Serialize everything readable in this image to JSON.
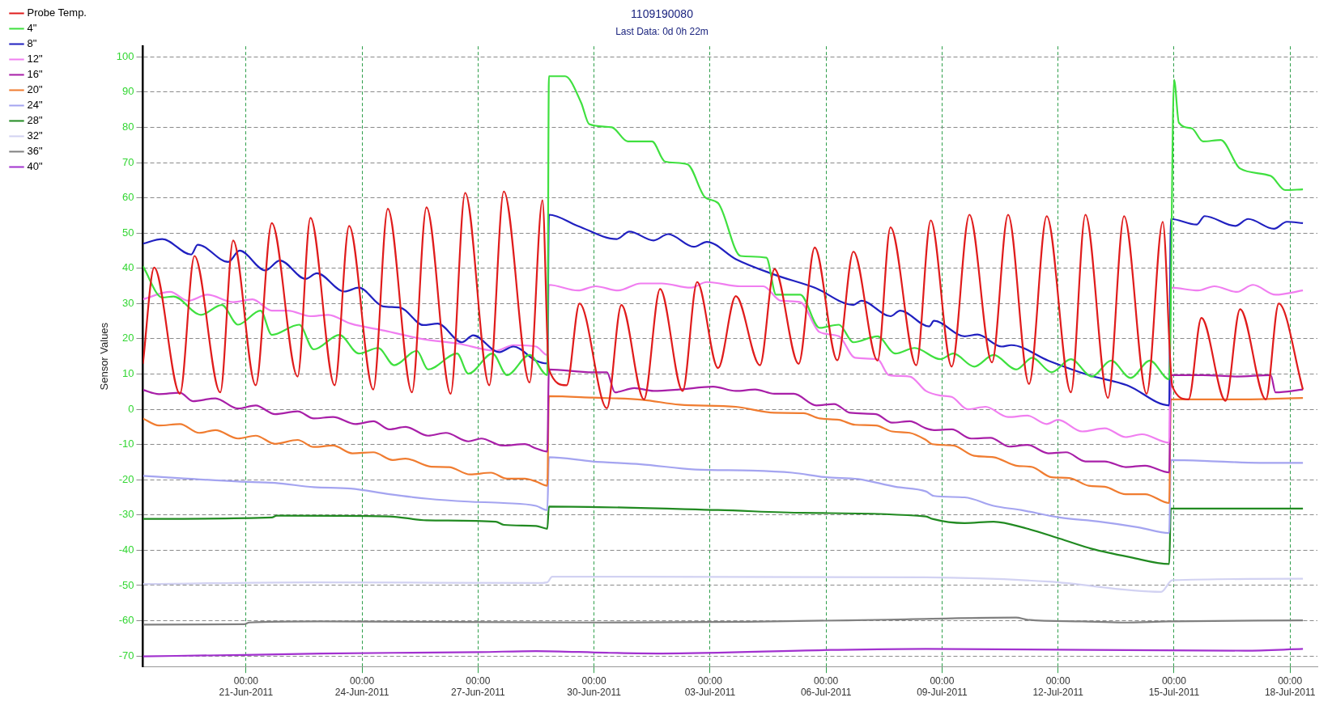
{
  "chart_data": {
    "type": "line",
    "title": "1109190080",
    "subtitle": "Last Data: 0d 0h 22m",
    "ylabel": "Sensor Values",
    "xlim": [
      "2011-06-18T08:00",
      "2011-07-18T17:00"
    ],
    "xticks": [
      {
        "value": "2011-06-21T00:00",
        "label": "00:00\n21-Jun-2011"
      },
      {
        "value": "2011-06-24T00:00",
        "label": "00:00\n24-Jun-2011"
      },
      {
        "value": "2011-06-27T00:00",
        "label": "00:00\n27-Jun-2011"
      },
      {
        "value": "2011-06-30T00:00",
        "label": "00:00\n30-Jun-2011"
      },
      {
        "value": "2011-07-03T00:00",
        "label": "00:00\n03-Jul-2011"
      },
      {
        "value": "2011-07-06T00:00",
        "label": "00:00\n06-Jul-2011"
      },
      {
        "value": "2011-07-09T00:00",
        "label": "00:00\n09-Jul-2011"
      },
      {
        "value": "2011-07-12T00:00",
        "label": "00:00\n12-Jul-2011"
      },
      {
        "value": "2011-07-15T00:00",
        "label": "00:00\n15-Jul-2011"
      },
      {
        "value": "2011-07-18T00:00",
        "label": "00:00\n18-Jul-2011"
      }
    ],
    "ylim": [
      -73,
      103
    ],
    "yticks": [
      -70,
      -60,
      -50,
      -40,
      -30,
      -20,
      -10,
      0,
      10,
      20,
      30,
      40,
      50,
      60,
      70,
      80,
      90,
      100
    ],
    "grid": true,
    "legend": "left",
    "series": [
      {
        "name": "Probe Temp.",
        "color": "#e01c1c",
        "x": [
          "2011-06-18T08:00",
          "2011-06-18T15:00",
          "2011-06-19T07:00",
          "2011-06-19T16:00",
          "2011-06-20T08:00",
          "2011-06-20T16:00",
          "2011-06-21T06:00",
          "2011-06-21T16:00",
          "2011-06-22T08:00",
          "2011-06-22T16:00",
          "2011-06-23T07:00",
          "2011-06-23T16:00",
          "2011-06-24T07:00",
          "2011-06-24T16:00",
          "2011-06-25T07:00",
          "2011-06-25T16:00",
          "2011-06-26T07:00",
          "2011-06-26T16:00",
          "2011-06-27T07:00",
          "2011-06-27T16:00",
          "2011-06-28T08:00",
          "2011-06-28T16:00",
          "2011-06-28T20:00",
          "2011-06-29T07:00",
          "2011-06-29T15:00",
          "2011-06-30T08:00",
          "2011-06-30T17:00",
          "2011-07-01T07:00",
          "2011-07-01T17:00",
          "2011-07-02T07:00",
          "2011-07-02T16:00",
          "2011-07-03T05:00",
          "2011-07-03T16:00",
          "2011-07-04T07:00",
          "2011-07-04T16:00",
          "2011-07-05T07:00",
          "2011-07-05T17:00",
          "2011-07-06T07:00",
          "2011-07-06T17:00",
          "2011-07-07T08:00",
          "2011-07-07T16:00",
          "2011-07-08T08:00",
          "2011-07-08T17:00",
          "2011-07-09T06:00",
          "2011-07-09T17:00",
          "2011-07-10T07:00",
          "2011-07-10T17:00",
          "2011-07-11T06:00",
          "2011-07-11T17:00",
          "2011-07-12T08:00",
          "2011-07-12T17:00",
          "2011-07-13T07:00",
          "2011-07-13T17:00",
          "2011-07-14T07:00",
          "2011-07-14T17:00",
          "2011-07-14T23:00",
          "2011-07-15T09:00",
          "2011-07-15T17:00",
          "2011-07-16T08:00",
          "2011-07-16T17:00",
          "2011-07-17T09:00",
          "2011-07-17T17:00",
          "2011-07-18T08:00"
        ],
        "values": [
          12.9,
          40.2,
          4.4,
          43.5,
          4.8,
          47.9,
          6.8,
          52.8,
          9.3,
          54.3,
          6.8,
          52,
          5.6,
          56.9,
          4.8,
          57.3,
          4.4,
          61.4,
          6.8,
          61.8,
          7.6,
          59.3,
          11.3,
          6.8,
          30,
          0.3,
          29.6,
          2.8,
          34.1,
          5.2,
          36.1,
          11.7,
          32.1,
          12.5,
          39.8,
          12.9,
          45.9,
          13.9,
          44.7,
          13.8,
          51.6,
          12.5,
          53.6,
          12.1,
          55.2,
          13.3,
          55.2,
          7.2,
          54.8,
          4.8,
          55.2,
          3.2,
          54.8,
          4.4,
          53.2,
          6.4,
          2.8,
          25.9,
          2.4,
          28.4,
          2.8,
          30,
          5.6
        ]
      },
      {
        "name": "4\"",
        "color": "#3fe03f",
        "x": [
          "2011-06-18T08:00",
          "2011-06-18T20:00",
          "2011-06-19T03:00",
          "2011-06-19T20:00",
          "2011-06-20T09:00",
          "2011-06-20T19:00",
          "2011-06-21T09:00",
          "2011-06-21T16:00",
          "2011-06-22T09:00",
          "2011-06-22T18:00",
          "2011-06-23T10:00",
          "2011-06-23T22:00",
          "2011-06-24T10:00",
          "2011-06-24T20:00",
          "2011-06-25T10:00",
          "2011-06-25T17:00",
          "2011-06-26T11:00",
          "2011-06-26T18:00",
          "2011-06-27T09:00",
          "2011-06-27T18:00",
          "2011-06-28T08:00",
          "2011-06-28T19:00",
          "2011-06-28T20:00",
          "2011-06-29T06:00",
          "2011-06-29T16:00",
          "2011-06-29T21:00",
          "2011-06-30T11:00",
          "2011-06-30T21:00",
          "2011-07-01T12:00",
          "2011-07-01T20:00",
          "2011-07-02T10:00",
          "2011-07-02T21:00",
          "2011-07-03T05:00",
          "2011-07-03T19:00",
          "2011-07-04T11:00",
          "2011-07-04T17:00",
          "2011-07-05T08:00",
          "2011-07-05T20:00",
          "2011-07-06T08:00",
          "2011-07-06T17:00",
          "2011-07-07T08:00",
          "2011-07-07T19:00",
          "2011-07-08T07:00",
          "2011-07-08T23:00",
          "2011-07-09T07:00",
          "2011-07-09T20:00",
          "2011-07-10T08:00",
          "2011-07-10T22:00",
          "2011-07-11T08:00",
          "2011-07-11T20:00",
          "2011-07-12T08:00",
          "2011-07-12T21:00",
          "2011-07-13T09:00",
          "2011-07-13T21:00",
          "2011-07-14T09:00",
          "2011-07-14T21:00",
          "2011-07-15T00:00",
          "2011-07-15T03:00",
          "2011-07-15T11:00",
          "2011-07-15T18:00",
          "2011-07-16T05:00",
          "2011-07-16T17:00",
          "2011-07-17T12:00",
          "2011-07-17T21:00",
          "2011-07-18T08:00"
        ],
        "values": [
          40.6,
          31.7,
          32,
          26.8,
          29.6,
          24,
          28,
          21.1,
          24,
          17,
          21.1,
          15.8,
          17.4,
          12.5,
          16.6,
          11.3,
          15.8,
          10.1,
          15.8,
          9.7,
          15.4,
          9.7,
          94.5,
          94.5,
          87,
          80.9,
          80,
          76,
          76,
          70.3,
          69.5,
          60.1,
          58.5,
          43.5,
          43,
          32.5,
          32.5,
          23.1,
          24,
          19,
          20.7,
          15.8,
          17.4,
          14.2,
          15.8,
          12.1,
          15.4,
          11.3,
          14.6,
          10.5,
          14.2,
          9.3,
          13.8,
          8.9,
          13.8,
          8.5,
          93.5,
          81.3,
          79.7,
          76,
          76.4,
          68.3,
          66.2,
          62.2,
          62.4
        ]
      },
      {
        "name": "8\"",
        "color": "#2020c0",
        "x": [
          "2011-06-18T08:00",
          "2011-06-18T20:00",
          "2011-06-19T14:00",
          "2011-06-19T18:00",
          "2011-06-20T13:00",
          "2011-06-20T20:00",
          "2011-06-21T12:00",
          "2011-06-21T21:00",
          "2011-06-22T13:00",
          "2011-06-22T20:00",
          "2011-06-23T13:00",
          "2011-06-23T22:00",
          "2011-06-24T13:00",
          "2011-06-25T00:00",
          "2011-06-25T14:00",
          "2011-06-25T23:00",
          "2011-06-26T14:00",
          "2011-06-26T21:00",
          "2011-06-27T13:00",
          "2011-06-27T22:00",
          "2011-06-28T12:00",
          "2011-06-28T19:00",
          "2011-06-28T20:00",
          "2011-06-29T14:00",
          "2011-06-30T14:00",
          "2011-06-30T22:00",
          "2011-07-01T13:00",
          "2011-07-01T22:00",
          "2011-07-02T14:00",
          "2011-07-02T22:00",
          "2011-07-03T16:00",
          "2011-07-04T16:00",
          "2011-07-05T17:00",
          "2011-07-06T17:00",
          "2011-07-06T22:00",
          "2011-07-07T16:00",
          "2011-07-07T22:00",
          "2011-07-08T16:00",
          "2011-07-08T19:00",
          "2011-07-09T14:00",
          "2011-07-09T22:00",
          "2011-07-10T13:00",
          "2011-07-10T19:00",
          "2011-07-11T18:00",
          "2011-07-12T19:00",
          "2011-07-13T19:00",
          "2011-07-14T21:00",
          "2011-07-14T22:00",
          "2011-07-15T14:00",
          "2011-07-15T19:00",
          "2011-07-16T14:00",
          "2011-07-16T22:00",
          "2011-07-17T14:00",
          "2011-07-17T22:00",
          "2011-07-18T08:00"
        ],
        "values": [
          47,
          48.3,
          43.9,
          46.7,
          41.8,
          45,
          39.4,
          42.2,
          37,
          38.6,
          33.4,
          34.5,
          29.2,
          28.8,
          23.9,
          24.3,
          19,
          21,
          16.2,
          17.8,
          13.8,
          13,
          55.2,
          52,
          48.3,
          50.4,
          47.9,
          49.7,
          46.1,
          47.5,
          42.6,
          38.2,
          34.5,
          29.6,
          30.8,
          26.4,
          28,
          23.5,
          25.1,
          20.7,
          21.2,
          17.8,
          18.2,
          13.8,
          9.7,
          6.8,
          1.1,
          54,
          52.4,
          54.8,
          52,
          54,
          51.2,
          53.2,
          52.8
        ]
      },
      {
        "name": "12\"",
        "color": "#f07ef0",
        "x": [
          "2011-06-18T08:00",
          "2011-06-19T01:00",
          "2011-06-19T12:00",
          "2011-06-20T00:00",
          "2011-06-20T16:00",
          "2011-06-21T04:00",
          "2011-06-21T16:00",
          "2011-06-22T02:00",
          "2011-06-22T16:00",
          "2011-06-23T03:00",
          "2011-06-23T17:00",
          "2011-06-24T14:00",
          "2011-06-25T14:00",
          "2011-06-26T12:00",
          "2011-06-27T11:00",
          "2011-06-27T22:00",
          "2011-06-28T12:00",
          "2011-06-28T19:00",
          "2011-06-28T20:00",
          "2011-06-29T14:00",
          "2011-06-30T01:00",
          "2011-06-30T15:00",
          "2011-07-01T05:00",
          "2011-07-01T18:00",
          "2011-07-02T12:00",
          "2011-07-02T22:00",
          "2011-07-03T19:00",
          "2011-07-04T09:00",
          "2011-07-04T20:00",
          "2011-07-05T08:00",
          "2011-07-05T20:00",
          "2011-07-06T08:00",
          "2011-07-06T18:00",
          "2011-07-07T08:00",
          "2011-07-07T15:00",
          "2011-07-08T04:00",
          "2011-07-08T14:00",
          "2011-07-08T23:00",
          "2011-07-09T06:00",
          "2011-07-09T16:00",
          "2011-07-10T03:00",
          "2011-07-10T17:00",
          "2011-07-11T05:00",
          "2011-07-11T17:00",
          "2011-07-12T00:00",
          "2011-07-12T15:00",
          "2011-07-13T05:00",
          "2011-07-13T18:00",
          "2011-07-14T04:00",
          "2011-07-14T21:00",
          "2011-07-14T22:00",
          "2011-07-15T15:00",
          "2011-07-16T01:00",
          "2011-07-16T15:00",
          "2011-07-17T01:00",
          "2011-07-17T15:00",
          "2011-07-18T08:00"
        ],
        "values": [
          31.2,
          33.3,
          30.8,
          32.5,
          30.4,
          31.2,
          28,
          28,
          26.4,
          26.8,
          24.3,
          22.3,
          19.9,
          18.6,
          16.6,
          18.2,
          17.8,
          15.4,
          35.3,
          33.7,
          34.9,
          33.7,
          35.7,
          35.7,
          34.5,
          36.1,
          34.9,
          34.9,
          30.8,
          30.4,
          21.9,
          20.7,
          14.6,
          14.2,
          9.7,
          9.3,
          5.2,
          3.9,
          3.5,
          0,
          0.7,
          -2.2,
          -1.8,
          -4.2,
          -3,
          -6.3,
          -5.4,
          -7.9,
          -7.1,
          -9.5,
          34.5,
          33.7,
          34.9,
          33.3,
          35.3,
          32.5,
          33.7
        ]
      },
      {
        "name": "16\"",
        "color": "#a81fa8",
        "x": [
          "2011-06-18T08:00",
          "2011-06-18T18:00",
          "2011-06-19T07:00",
          "2011-06-19T15:00",
          "2011-06-20T05:00",
          "2011-06-20T19:00",
          "2011-06-21T06:00",
          "2011-06-21T18:00",
          "2011-06-22T08:00",
          "2011-06-22T18:00",
          "2011-06-23T06:00",
          "2011-06-23T20:00",
          "2011-06-24T07:00",
          "2011-06-24T17:00",
          "2011-06-25T03:00",
          "2011-06-25T17:00",
          "2011-06-26T04:00",
          "2011-06-26T18:00",
          "2011-06-27T02:00",
          "2011-06-27T15:00",
          "2011-06-28T05:00",
          "2011-06-28T12:00",
          "2011-06-28T19:00",
          "2011-06-28T20:00",
          "2011-06-29T23:00",
          "2011-06-30T08:00",
          "2011-06-30T13:00",
          "2011-07-01T01:00",
          "2011-07-01T13:00",
          "2011-07-02T05:00",
          "2011-07-03T02:00",
          "2011-07-03T16:00",
          "2011-07-04T04:00",
          "2011-07-04T16:00",
          "2011-07-05T04:00",
          "2011-07-05T18:00",
          "2011-07-06T05:00",
          "2011-07-06T15:00",
          "2011-07-07T07:00",
          "2011-07-07T17:00",
          "2011-07-08T04:00",
          "2011-07-08T14:00",
          "2011-07-08T19:00",
          "2011-07-09T06:00",
          "2011-07-09T18:00",
          "2011-07-10T06:00",
          "2011-07-10T18:00",
          "2011-07-11T05:00",
          "2011-07-11T18:00",
          "2011-07-12T05:00",
          "2011-07-12T17:00",
          "2011-07-13T05:00",
          "2011-07-13T18:00",
          "2011-07-14T06:00",
          "2011-07-14T21:00",
          "2011-07-14T22:00",
          "2011-07-15T18:00",
          "2011-07-16T15:00",
          "2011-07-17T12:00",
          "2011-07-17T15:00",
          "2011-07-18T08:00"
        ],
        "values": [
          5.5,
          4.3,
          4.7,
          2.3,
          3.1,
          0.2,
          1.1,
          -1.4,
          -0.6,
          -2.6,
          -2.2,
          -4.2,
          -3.4,
          -5.7,
          -5,
          -7.5,
          -6.7,
          -9.1,
          -8.3,
          -10.3,
          -9.9,
          -11.1,
          -12,
          11.3,
          10.5,
          10.5,
          4.8,
          6,
          5.2,
          5.6,
          6.4,
          5.2,
          5.6,
          4.4,
          4.4,
          1.1,
          1.5,
          -1,
          -1.4,
          -3.8,
          -3.4,
          -5.4,
          -5.9,
          -5.7,
          -8.3,
          -8.1,
          -10.6,
          -10.1,
          -12.5,
          -12.2,
          -14.8,
          -14.8,
          -16.4,
          -16,
          -17.9,
          9.7,
          9.7,
          9.3,
          9.7,
          4.8,
          5.6
        ]
      },
      {
        "name": "20\"",
        "color": "#f07c30",
        "x": [
          "2011-06-18T08:00",
          "2011-06-18T18:00",
          "2011-06-19T07:00",
          "2011-06-19T19:00",
          "2011-06-20T05:00",
          "2011-06-20T19:00",
          "2011-06-21T06:00",
          "2011-06-21T18:00",
          "2011-06-22T08:00",
          "2011-06-22T18:00",
          "2011-06-23T06:00",
          "2011-06-23T18:00",
          "2011-06-24T07:00",
          "2011-06-24T19:00",
          "2011-06-25T03:00",
          "2011-06-25T19:00",
          "2011-06-26T06:00",
          "2011-06-26T19:00",
          "2011-06-27T08:00",
          "2011-06-27T18:00",
          "2011-06-28T05:00",
          "2011-06-28T12:00",
          "2011-06-28T19:00",
          "2011-06-28T20:00",
          "2011-06-29T23:00",
          "2011-07-01T06:00",
          "2011-07-02T05:00",
          "2011-07-03T16:00",
          "2011-07-04T16:00",
          "2011-07-05T10:00",
          "2011-07-05T20:00",
          "2011-07-06T08:00",
          "2011-07-06T18:00",
          "2011-07-07T07:00",
          "2011-07-07T17:00",
          "2011-07-08T04:00",
          "2011-07-08T14:00",
          "2011-07-08T18:00",
          "2011-07-09T07:00",
          "2011-07-09T20:00",
          "2011-07-10T08:00",
          "2011-07-10T22:00",
          "2011-07-11T08:00",
          "2011-07-11T20:00",
          "2011-07-12T07:00",
          "2011-07-12T19:00",
          "2011-07-13T05:00",
          "2011-07-13T18:00",
          "2011-07-14T06:00",
          "2011-07-14T21:00",
          "2011-07-14T22:00",
          "2011-07-16T15:00",
          "2011-07-18T08:00"
        ],
        "values": [
          -2.6,
          -4.6,
          -4.2,
          -6.7,
          -5.9,
          -8.3,
          -7.5,
          -9.8,
          -8.7,
          -10.7,
          -10.3,
          -12.5,
          -12.2,
          -14.4,
          -14,
          -16.3,
          -16.4,
          -18.5,
          -18,
          -19.7,
          -19.7,
          -20.5,
          -21.7,
          3.7,
          3.3,
          2.7,
          1.3,
          0.7,
          -1,
          -1.1,
          -2.6,
          -3,
          -4.4,
          -4.6,
          -6.3,
          -6.7,
          -8.7,
          -9.9,
          -10.3,
          -13.2,
          -13.6,
          -16,
          -16.4,
          -19.3,
          -19.5,
          -21.7,
          -22,
          -24.1,
          -24.1,
          -26.6,
          2.8,
          2.8,
          3.2
        ]
      },
      {
        "name": "24\"",
        "color": "#a4a4f0",
        "x": [
          "2011-06-18T08:00",
          "2011-06-20T19:00",
          "2011-06-21T18:00",
          "2011-06-22T18:00",
          "2011-06-23T17:00",
          "2011-06-24T17:00",
          "2011-06-25T17:00",
          "2011-06-26T18:00",
          "2011-06-27T16:00",
          "2011-06-28T12:00",
          "2011-06-28T19:00",
          "2011-06-28T20:00",
          "2011-06-29T23:00",
          "2011-07-01T05:00",
          "2011-07-02T15:00",
          "2011-07-04T02:00",
          "2011-07-05T03:00",
          "2011-07-06T00:00",
          "2011-07-06T20:00",
          "2011-07-07T19:00",
          "2011-07-08T14:00",
          "2011-07-08T19:00",
          "2011-07-09T14:00",
          "2011-07-10T08:00",
          "2011-07-11T01:00",
          "2011-07-12T01:00",
          "2011-07-13T02:00",
          "2011-07-14T02:00",
          "2011-07-14T21:00",
          "2011-07-14T22:00",
          "2011-07-16T03:00",
          "2011-07-17T05:00",
          "2011-07-18T08:00"
        ],
        "values": [
          -18.9,
          -20.5,
          -20.9,
          -22.1,
          -22.5,
          -24.1,
          -25.4,
          -26.2,
          -26.6,
          -27.4,
          -28.6,
          -13.6,
          -14.8,
          -15.6,
          -17.1,
          -17.4,
          -18,
          -19.3,
          -19.8,
          -22,
          -23.3,
          -24.6,
          -25,
          -27.4,
          -28.6,
          -30.7,
          -31.9,
          -33.5,
          -35.1,
          -14.4,
          -14.8,
          -15.2,
          -15.2
        ]
      },
      {
        "name": "28\"",
        "color": "#218a21",
        "x": [
          "2011-06-18T08:00",
          "2011-06-21T16:00",
          "2011-06-21T19:00",
          "2011-06-24T17:00",
          "2011-06-25T16:00",
          "2011-06-27T11:00",
          "2011-06-27T16:00",
          "2011-06-28T12:00",
          "2011-06-28T19:00",
          "2011-06-28T20:00",
          "2011-07-03T05:00",
          "2011-07-05T10:00",
          "2011-07-08T14:00",
          "2011-07-08T18:00",
          "2011-07-09T14:00",
          "2011-07-10T08:00",
          "2011-07-11T05:00",
          "2011-07-12T01:00",
          "2011-07-12T21:00",
          "2011-07-13T21:00",
          "2011-07-14T21:00",
          "2011-07-14T22:00",
          "2011-07-18T08:00"
        ],
        "values": [
          -31.1,
          -30.7,
          -30.2,
          -30.4,
          -31.5,
          -31.9,
          -32.8,
          -33.1,
          -33.9,
          -27.6,
          -28.6,
          -29.4,
          -30.4,
          -31.1,
          -32.3,
          -31.9,
          -33.9,
          -36.7,
          -39.6,
          -42,
          -43.9,
          -28.2,
          -28.2
        ]
      },
      {
        "name": "32\"",
        "color": "#d2d2f2",
        "x": [
          "2011-06-18T08:00",
          "2011-06-22T16:00",
          "2011-06-28T12:00",
          "2011-06-28T19:00",
          "2011-06-28T22:00",
          "2011-07-08T14:00",
          "2011-07-11T18:00",
          "2011-07-14T16:00",
          "2011-07-14T23:00",
          "2011-07-18T08:00"
        ],
        "values": [
          -49.6,
          -49.1,
          -49.3,
          -49.1,
          -47.5,
          -47.7,
          -48.9,
          -51.8,
          -48.5,
          -48.1
        ]
      },
      {
        "name": "36\"",
        "color": "#808080",
        "x": [
          "2011-06-18T08:00",
          "2011-06-20T23:00",
          "2011-06-21T02:00",
          "2011-06-22T22:00",
          "2011-06-30T04:00",
          "2011-07-03T23:00",
          "2011-07-07T14:00",
          "2011-07-10T22:00",
          "2011-07-11T05:00",
          "2011-07-12T15:00",
          "2011-07-13T16:00",
          "2011-07-14T21:00",
          "2011-07-18T08:00"
        ],
        "values": [
          -61.1,
          -61,
          -60.5,
          -60.2,
          -60.5,
          -60.3,
          -59.7,
          -59.1,
          -59.7,
          -60.2,
          -60.5,
          -60.2,
          -59.9
        ]
      },
      {
        "name": "40\"",
        "color": "#a232cf",
        "x": [
          "2011-06-18T08:00",
          "2011-06-20T23:00",
          "2011-06-22T23:00",
          "2011-06-27T01:00",
          "2011-06-28T12:00",
          "2011-06-30T08:00",
          "2011-07-01T18:00",
          "2011-07-06T03:00",
          "2011-07-08T14:00",
          "2011-07-16T20:00",
          "2011-07-18T08:00"
        ],
        "values": [
          -70.1,
          -69.7,
          -69.3,
          -68.9,
          -68.6,
          -69.1,
          -69.3,
          -68.3,
          -68,
          -68.5,
          -68
        ]
      }
    ]
  }
}
